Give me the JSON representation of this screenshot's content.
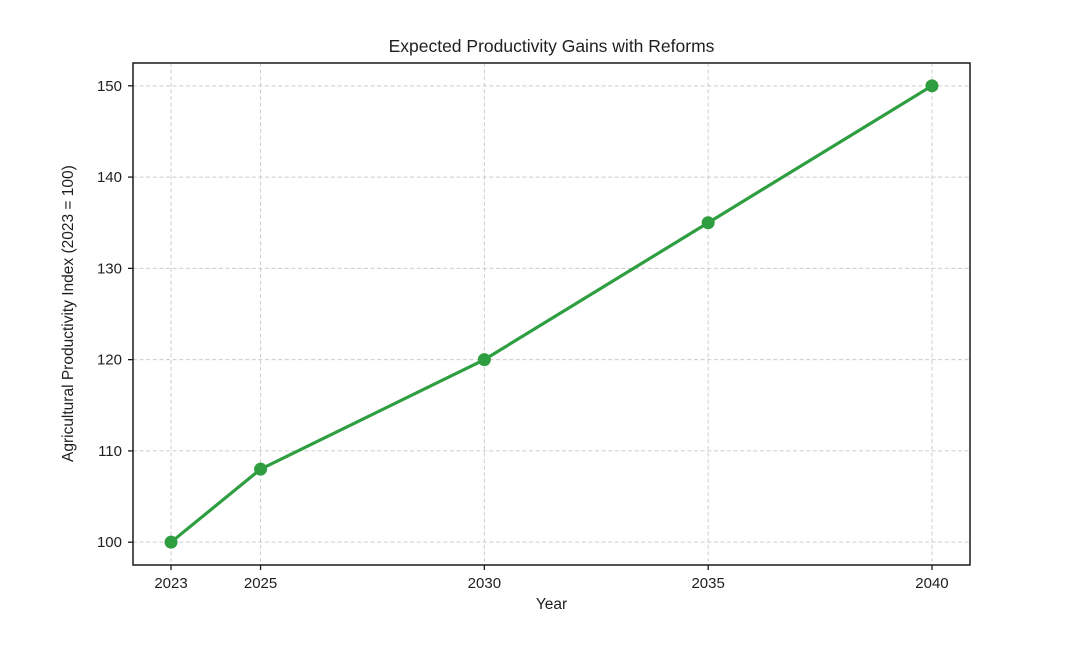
{
  "figure": {
    "background": "#ffffff"
  },
  "chart_data": {
    "type": "line",
    "title": "Expected Productivity Gains with Reforms",
    "xlabel": "Year",
    "ylabel": "Agricultural Productivity Index (2023 = 100)",
    "x": [
      2023,
      2025,
      2030,
      2035,
      2040
    ],
    "series": [
      {
        "values": [
          100,
          108,
          120,
          135,
          150
        ],
        "color": "#2e9e41",
        "marker": "circle"
      }
    ],
    "xticks": [
      "2023",
      "2025",
      "2030",
      "2035",
      "2040"
    ],
    "xtick_values": [
      2023,
      2025,
      2030,
      2035,
      2040
    ],
    "yticks": [
      "100",
      "110",
      "120",
      "130",
      "140",
      "150"
    ],
    "ytick_values": [
      100,
      110,
      120,
      130,
      140,
      150
    ],
    "xlim": [
      2022.15,
      2040.85
    ],
    "ylim": [
      97.5,
      152.5
    ],
    "grid": true,
    "grid_style": "dashed",
    "grid_color": "#cccccc",
    "spine_color": "#1a1a1a",
    "text_color": "#1f1f1f",
    "legend": false
  }
}
